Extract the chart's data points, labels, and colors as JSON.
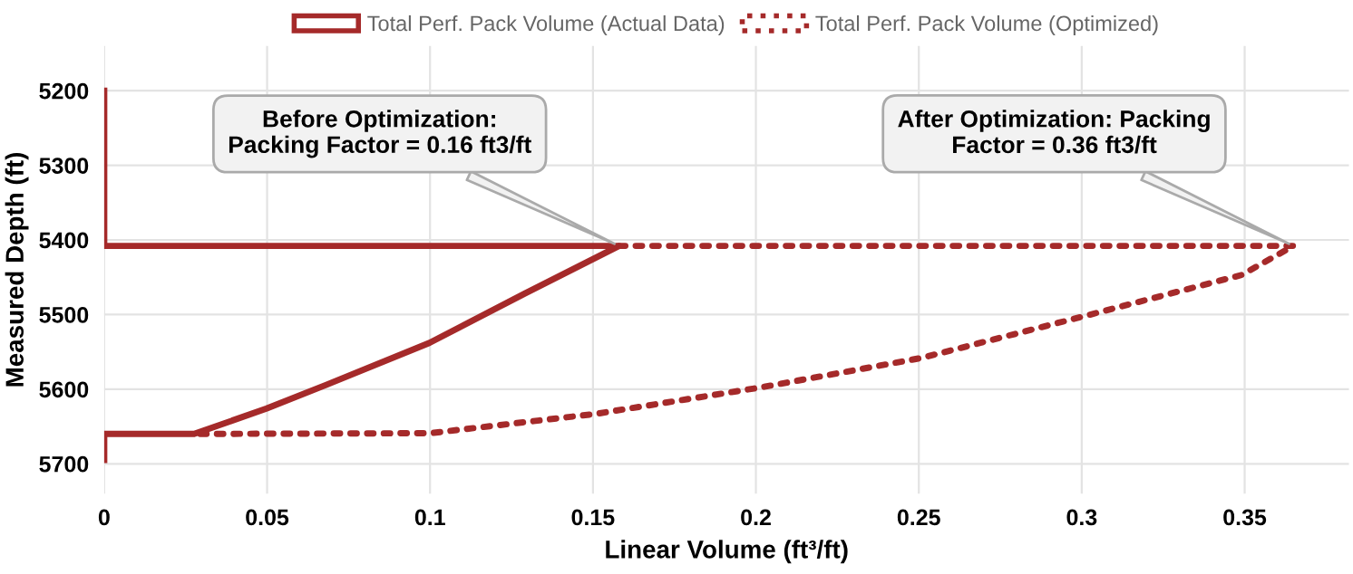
{
  "chart_data": {
    "type": "line",
    "xlabel": "Linear Volume (ft³/ft)",
    "ylabel": "Measured Depth (ft)",
    "series": [
      {
        "name": "Total Perf. Pack Volume (Actual Data)",
        "color": "#a52a2a",
        "line_style": "solid",
        "x": [
          0,
          0,
          0.158,
          0.129,
          0.0998,
          0.0683,
          0.0498,
          0.0276,
          0,
          0
        ],
        "values": [
          5200,
          5408,
          5408,
          5472,
          5538,
          5594,
          5626,
          5660,
          5660,
          5695
        ]
      },
      {
        "name": "Total Perf. Pack Volume (Optimized)",
        "color": "#a52a2a",
        "line_style": "dotted",
        "x": [
          0.158,
          0.365,
          0.349,
          0.3,
          0.251,
          0.201,
          0.151,
          0.1,
          0.027
        ],
        "values": [
          5408,
          5408,
          5447,
          5503,
          5558,
          5598,
          5633,
          5659,
          5660
        ]
      }
    ],
    "annotations": [
      {
        "text": "Before Optimization:\nPacking Factor = 0.16 ft3/ft",
        "x": 0.158,
        "y": 5408
      },
      {
        "text": "After Optimization: Packing\nFactor = 0.36 ft3/ft",
        "x": 0.365,
        "y": 5408
      }
    ],
    "xlim": [
      0,
      0.382
    ],
    "xticks": [
      0,
      0.05,
      0.1,
      0.15,
      0.2,
      0.25,
      0.3,
      0.35
    ],
    "ylim": [
      5740,
      5140
    ],
    "yticks": [
      5200,
      5300,
      5400,
      5500,
      5600,
      5700
    ],
    "grid": true,
    "legend": "top"
  }
}
